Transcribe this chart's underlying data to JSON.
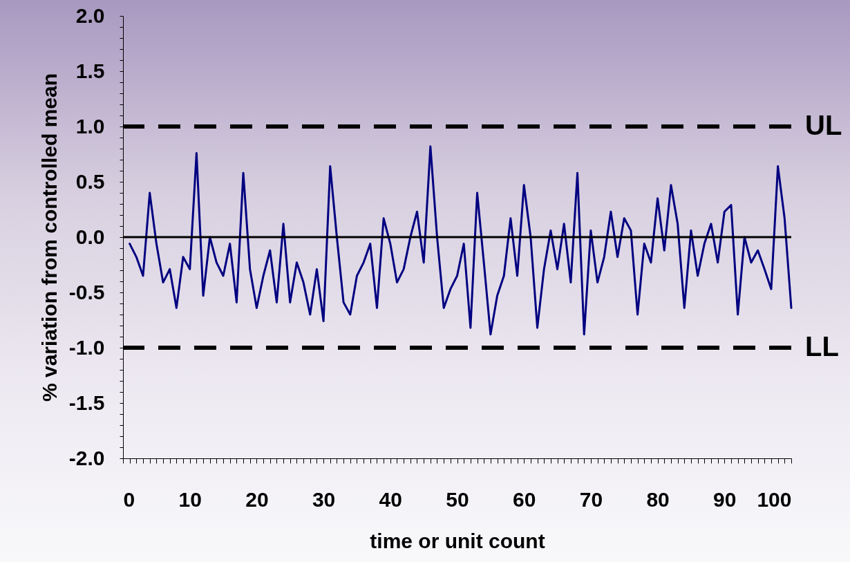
{
  "chart_data": {
    "type": "line",
    "xlabel": "time or unit count",
    "ylabel": "% variation from controlled mean",
    "x": [
      1,
      2,
      3,
      4,
      5,
      6,
      7,
      8,
      9,
      10,
      11,
      12,
      13,
      14,
      15,
      16,
      17,
      18,
      19,
      20,
      21,
      22,
      23,
      24,
      25,
      26,
      27,
      28,
      29,
      30,
      31,
      32,
      33,
      34,
      35,
      36,
      37,
      38,
      39,
      40,
      41,
      42,
      43,
      44,
      45,
      46,
      47,
      48,
      49,
      50,
      51,
      52,
      53,
      54,
      55,
      56,
      57,
      58,
      59,
      60,
      61,
      62,
      63,
      64,
      65,
      66,
      67,
      68,
      69,
      70,
      71,
      72,
      73,
      74,
      75,
      76,
      77,
      78,
      79,
      80,
      81,
      82,
      83,
      84,
      85,
      86,
      87,
      88,
      89,
      90,
      91,
      92,
      93,
      94,
      95,
      96,
      97,
      98,
      99,
      100
    ],
    "series": [
      {
        "color": "#000080",
        "values": [
          -0.06,
          -0.18,
          -0.35,
          0.4,
          -0.06,
          -0.41,
          -0.29,
          -0.64,
          -0.18,
          -0.29,
          0.76,
          -0.53,
          0.0,
          -0.23,
          -0.35,
          -0.06,
          -0.59,
          0.58,
          -0.29,
          -0.64,
          -0.35,
          -0.12,
          -0.59,
          0.12,
          -0.59,
          -0.23,
          -0.41,
          -0.7,
          -0.29,
          -0.76,
          0.64,
          0.0,
          -0.59,
          -0.7,
          -0.35,
          -0.23,
          -0.06,
          -0.64,
          0.17,
          -0.06,
          -0.41,
          -0.29,
          0.0,
          0.23,
          -0.23,
          0.82,
          0.0,
          -0.64,
          -0.47,
          -0.35,
          -0.06,
          -0.82,
          0.4,
          -0.23,
          -0.88,
          -0.53,
          -0.35,
          0.17,
          -0.35,
          0.47,
          0.0,
          -0.82,
          -0.29,
          0.06,
          -0.29,
          0.12,
          -0.41,
          0.58,
          -0.88,
          0.06,
          -0.41,
          -0.18,
          0.23,
          -0.18,
          0.17,
          0.06,
          -0.7,
          -0.06,
          -0.23,
          0.35,
          -0.12,
          0.47,
          0.12,
          -0.64,
          0.06,
          -0.35,
          -0.06,
          0.12,
          -0.23,
          0.23,
          0.29,
          -0.7,
          0.0,
          -0.23,
          -0.12,
          -0.29,
          -0.47,
          0.64,
          0.17,
          -0.64
        ]
      }
    ],
    "xlim": [
      0,
      100
    ],
    "xticks": [
      0,
      {
        "value": 1,
        "label": null
      },
      {
        "value": 2,
        "label": null
      },
      {
        "value": 3,
        "label": null
      },
      {
        "value": 4,
        "label": null
      },
      {
        "value": 5,
        "label": null
      },
      {
        "value": 6,
        "label": null
      },
      {
        "value": 7,
        "label": null
      },
      {
        "value": 8,
        "label": null
      },
      {
        "value": 9,
        "label": null
      },
      10,
      {
        "value": 11,
        "label": null
      },
      {
        "value": 12,
        "label": null
      },
      {
        "value": 13,
        "label": null
      },
      {
        "value": 14,
        "label": null
      },
      {
        "value": 15,
        "label": null
      },
      {
        "value": 16,
        "label": null
      },
      {
        "value": 17,
        "label": null
      },
      {
        "value": 18,
        "label": null
      },
      {
        "value": 19,
        "label": null
      },
      20,
      {
        "value": 21,
        "label": null
      },
      {
        "value": 22,
        "label": null
      },
      {
        "value": 23,
        "label": null
      },
      {
        "value": 24,
        "label": null
      },
      {
        "value": 25,
        "label": null
      },
      {
        "value": 26,
        "label": null
      },
      {
        "value": 27,
        "label": null
      },
      {
        "value": 28,
        "label": null
      },
      {
        "value": 29,
        "label": null
      },
      30,
      {
        "value": 31,
        "label": null
      },
      {
        "value": 32,
        "label": null
      },
      {
        "value": 33,
        "label": null
      },
      {
        "value": 34,
        "label": null
      },
      {
        "value": 35,
        "label": null
      },
      {
        "value": 36,
        "label": null
      },
      {
        "value": 37,
        "label": null
      },
      {
        "value": 38,
        "label": null
      },
      {
        "value": 39,
        "label": null
      },
      40,
      {
        "value": 41,
        "label": null
      },
      {
        "value": 42,
        "label": null
      },
      {
        "value": 43,
        "label": null
      },
      {
        "value": 44,
        "label": null
      },
      {
        "value": 45,
        "label": null
      },
      {
        "value": 46,
        "label": null
      },
      {
        "value": 47,
        "label": null
      },
      {
        "value": 48,
        "label": null
      },
      {
        "value": 49,
        "label": null
      },
      50,
      {
        "value": 51,
        "label": null
      },
      {
        "value": 52,
        "label": null
      },
      {
        "value": 53,
        "label": null
      },
      {
        "value": 54,
        "label": null
      },
      {
        "value": 55,
        "label": null
      },
      {
        "value": 56,
        "label": null
      },
      {
        "value": 57,
        "label": null
      },
      {
        "value": 58,
        "label": null
      },
      {
        "value": 59,
        "label": null
      },
      60,
      {
        "value": 61,
        "label": null
      },
      {
        "value": 62,
        "label": null
      },
      {
        "value": 63,
        "label": null
      },
      {
        "value": 64,
        "label": null
      },
      {
        "value": 65,
        "label": null
      },
      {
        "value": 66,
        "label": null
      },
      {
        "value": 67,
        "label": null
      },
      {
        "value": 68,
        "label": null
      },
      {
        "value": 69,
        "label": null
      },
      70,
      {
        "value": 71,
        "label": null
      },
      {
        "value": 72,
        "label": null
      },
      {
        "value": 73,
        "label": null
      },
      {
        "value": 74,
        "label": null
      },
      {
        "value": 75,
        "label": null
      },
      {
        "value": 76,
        "label": null
      },
      {
        "value": 77,
        "label": null
      },
      {
        "value": 78,
        "label": null
      },
      {
        "value": 79,
        "label": null
      },
      80,
      {
        "value": 81,
        "label": null
      },
      {
        "value": 82,
        "label": null
      },
      {
        "value": 83,
        "label": null
      },
      {
        "value": 84,
        "label": null
      },
      {
        "value": 85,
        "label": null
      },
      {
        "value": 86,
        "label": null
      },
      {
        "value": 87,
        "label": null
      },
      {
        "value": 88,
        "label": null
      },
      {
        "value": 89,
        "label": null
      },
      90,
      {
        "value": 91,
        "label": null
      },
      {
        "value": 92,
        "label": null
      },
      {
        "value": 93,
        "label": null
      },
      {
        "value": 94,
        "label": null
      },
      {
        "value": 95,
        "label": null
      },
      {
        "value": 96,
        "label": null
      },
      {
        "value": 97,
        "label": null
      },
      {
        "value": 98,
        "label": null
      },
      {
        "value": 99,
        "label": null
      },
      100
    ],
    "ylim": [
      -2,
      2
    ],
    "yticks": [
      {
        "value": -2,
        "label": "-2.0"
      },
      {
        "value": -1.9,
        "label": null
      },
      {
        "value": -1.8,
        "label": null
      },
      {
        "value": -1.7,
        "label": null
      },
      {
        "value": -1.6,
        "label": null
      },
      {
        "value": -1.5,
        "label": "-1.5"
      },
      {
        "value": -1.4,
        "label": null
      },
      {
        "value": -1.3,
        "label": null
      },
      {
        "value": -1.2,
        "label": null
      },
      {
        "value": -1.1,
        "label": null
      },
      {
        "value": -1,
        "label": "-1.0"
      },
      {
        "value": -0.9,
        "label": null
      },
      {
        "value": -0.8,
        "label": null
      },
      {
        "value": -0.7,
        "label": null
      },
      {
        "value": -0.6,
        "label": null
      },
      {
        "value": -0.5,
        "label": "-0.5"
      },
      {
        "value": -0.4,
        "label": null
      },
      {
        "value": -0.3,
        "label": null
      },
      {
        "value": -0.2,
        "label": null
      },
      {
        "value": -0.1,
        "label": null
      },
      {
        "value": 0,
        "label": "0.0"
      },
      {
        "value": 0.1,
        "label": null
      },
      {
        "value": 0.2,
        "label": null
      },
      {
        "value": 0.3,
        "label": null
      },
      {
        "value": 0.4,
        "label": null
      },
      {
        "value": 0.5,
        "label": "0.5"
      },
      {
        "value": 0.6,
        "label": null
      },
      {
        "value": 0.7,
        "label": null
      },
      {
        "value": 0.8,
        "label": null
      },
      {
        "value": 0.9,
        "label": null
      },
      {
        "value": 1,
        "label": "1.0"
      },
      {
        "value": 1.1,
        "label": null
      },
      {
        "value": 1.2,
        "label": null
      },
      {
        "value": 1.3,
        "label": null
      },
      {
        "value": 1.4,
        "label": null
      },
      {
        "value": 1.5,
        "label": "1.5"
      },
      {
        "value": 1.6,
        "label": null
      },
      {
        "value": 1.7,
        "label": null
      },
      {
        "value": 1.8,
        "label": null
      },
      {
        "value": 1.9,
        "label": null
      },
      {
        "value": 2,
        "label": "2.0"
      }
    ],
    "ref_lines": [
      {
        "axis": "y",
        "value": 0,
        "color": "#000000",
        "line_style": "solid"
      },
      {
        "axis": "y",
        "value": 1,
        "label": "UL",
        "color": "#000000",
        "line_style": "dashed"
      },
      {
        "axis": "y",
        "value": -1,
        "label": "LL",
        "color": "#000000",
        "line_style": "dashed"
      }
    ],
    "line_style": "solid"
  }
}
